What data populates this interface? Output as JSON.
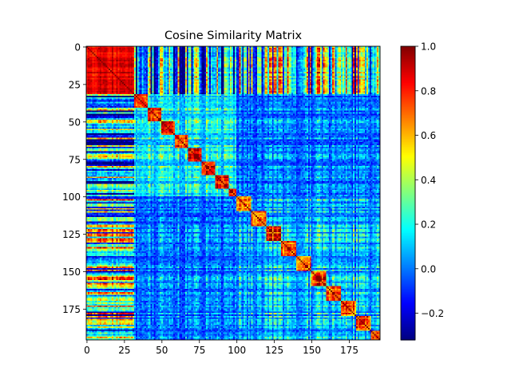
{
  "chart_data": {
    "type": "heatmap",
    "title": "Cosine Similarity Matrix",
    "xlabel": "",
    "ylabel": "",
    "matrix_size": 196,
    "colormap": "jet",
    "value_range": [
      -0.32,
      1.0
    ],
    "x_ticks": [
      0,
      25,
      50,
      75,
      100,
      125,
      150,
      175
    ],
    "y_ticks": [
      0,
      25,
      50,
      75,
      100,
      125,
      150,
      175
    ],
    "colorbar_ticks": [
      1.0,
      0.8,
      0.6,
      0.4,
      0.2,
      0.0,
      -0.2
    ],
    "colorbar_tick_labels": [
      "1.0",
      "0.8",
      "0.6",
      "0.4",
      "0.2",
      "0.0",
      "−0.2"
    ],
    "block_boundaries": [
      0,
      32,
      100,
      196
    ],
    "block_descriptions": {
      "block_0_31_self": 0.85,
      "block_32_99_self": 0.45,
      "block_100_195_self": 0.35,
      "cross_block_0_vs_1": 0.05,
      "cross_block_0_vs_2": 0.2,
      "cross_block_1_vs_2": 0.0
    },
    "diagonal_value": 1.0
  }
}
